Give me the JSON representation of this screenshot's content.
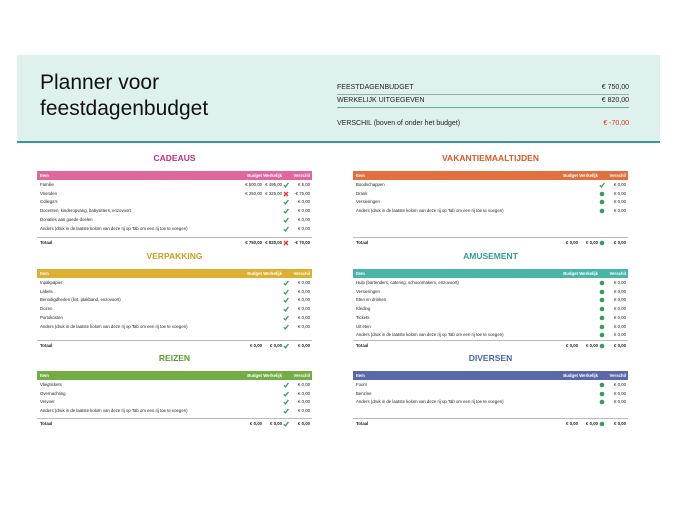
{
  "header": {
    "title": "Planner voor feestdagenbudget",
    "summary": [
      {
        "label": "FEESTDAGENBUDGET",
        "value": "€ 750,00"
      },
      {
        "label": "WERKELIJK UITGEGEVEN",
        "value": "€ 820,00"
      },
      {
        "label": "VERSCHIL (boven of onder het budget)",
        "value": "€ -70,00"
      }
    ]
  },
  "sections": [
    {
      "title": "CADEAUS",
      "columns": [
        "Item",
        "Budget",
        "Werkelijk",
        "Verschil"
      ],
      "rows": [
        [
          "Familie",
          "€ 500,00",
          "€ 495,00",
          "€ 5,00"
        ],
        [
          "Vrienden",
          "€ 250,00",
          "€ 325,00",
          "-€ 75,00"
        ],
        [
          "Collega's",
          null,
          null,
          "€ 0,00"
        ],
        [
          "Docenten, kinderopvang, babysitters, enzovoort",
          null,
          null,
          "€ 0,00"
        ],
        [
          "Donaties aan goede doelen",
          null,
          null,
          "€ 0,00"
        ],
        [
          "Anders (druk in de laatste kolom van deze rij op Tab om een rij toe te voegen)",
          null,
          null,
          "€ 0,00"
        ]
      ],
      "total": [
        "Totaal",
        "€ 750,00",
        "€ 820,00",
        "-€ 70,00"
      ]
    },
    {
      "title": "VAKANTIEMAALTIJDEN",
      "columns": [
        "Item",
        "Budget",
        "Werkelijk",
        "Verschil"
      ],
      "rows": [
        [
          "Boodschappen",
          null,
          null,
          "€ 0,00"
        ],
        [
          "Drank",
          null,
          null,
          "€ 0,00"
        ],
        [
          "Versieringen",
          null,
          null,
          "€ 0,00"
        ],
        [
          "Anders (druk in de laatste kolom van deze rij op Tab om een rij toe te voegen)",
          null,
          null,
          "€ 0,00"
        ]
      ],
      "total": [
        "Totaal",
        "€ 0,00",
        "€ 0,00",
        "€ 0,00"
      ]
    },
    {
      "title": "VERPAKKING",
      "columns": [
        "Item",
        "Budget",
        "Werkelijk",
        "Verschil"
      ],
      "rows": [
        [
          "Inpakpapier",
          null,
          null,
          "€ 0,00"
        ],
        [
          "Labels",
          null,
          null,
          "€ 0,00"
        ],
        [
          "Benodigdheden (lint, plakband, enzovoort)",
          null,
          null,
          "€ 0,00"
        ],
        [
          "Dozen",
          null,
          null,
          "€ 0,00"
        ],
        [
          "Portokosten",
          null,
          null,
          "€ 0,00"
        ],
        [
          "Anders (druk in de laatste kolom van deze rij op Tab om een rij toe te voegen)",
          null,
          null,
          "€ 0,00"
        ]
      ],
      "total": [
        "Totaal",
        "€ 0,00",
        "€ 0,00",
        "€ 0,00"
      ]
    },
    {
      "title": "AMUSEMENT",
      "columns": [
        "Item",
        "Budget",
        "Werkelijk",
        "Verschil"
      ],
      "rows": [
        [
          "Hulp (bartenders, catering, schoonmakers, enzovoort)",
          null,
          null,
          "€ 0,00"
        ],
        [
          "Versieringen",
          null,
          null,
          "€ 0,00"
        ],
        [
          "Eten en drinken",
          null,
          null,
          "€ 0,00"
        ],
        [
          "Kleding",
          null,
          null,
          "€ 0,00"
        ],
        [
          "Tickets",
          null,
          null,
          "€ 0,00"
        ],
        [
          "Uit eten",
          null,
          null,
          "€ 0,00"
        ],
        [
          "Anders (druk in de laatste kolom van deze rij op Tab om een rij toe te voegen)",
          null,
          null,
          "€ 0,00"
        ]
      ],
      "total": [
        "Totaal",
        "€ 0,00",
        "€ 0,00",
        "€ 0,00"
      ]
    },
    {
      "title": "REIZEN",
      "columns": [
        "Item",
        "Budget",
        "Werkelijk",
        "Verschil"
      ],
      "rows": [
        [
          "Vliegtickets",
          null,
          null,
          "€ 0,00"
        ],
        [
          "Overnachting",
          null,
          null,
          "€ 0,00"
        ],
        [
          "Vervoer",
          null,
          null,
          "€ 0,00"
        ],
        [
          "Anders (druk in de laatste kolom van deze rij op Tab om een rij toe te voegen)",
          null,
          null,
          "€ 0,00"
        ]
      ],
      "total": [
        "Totaal",
        "€ 0,00",
        "€ 0,00",
        "€ 0,00"
      ]
    },
    {
      "title": "DIVERSEN",
      "columns": [
        "Item",
        "Budget",
        "Werkelijk",
        "Verschil"
      ],
      "rows": [
        [
          "Fooi's",
          null,
          null,
          "€ 0,00"
        ],
        [
          "Benzine",
          null,
          null,
          "€ 0,00"
        ],
        [
          "Anders (druk in de laatste kolom van deze rij op Tab om een rij toe te voegen)",
          null,
          null,
          "€ 0,00"
        ]
      ],
      "total": [
        "Totaal",
        "€ 0,00",
        "€ 0,00",
        "€ 0,00"
      ]
    }
  ]
}
